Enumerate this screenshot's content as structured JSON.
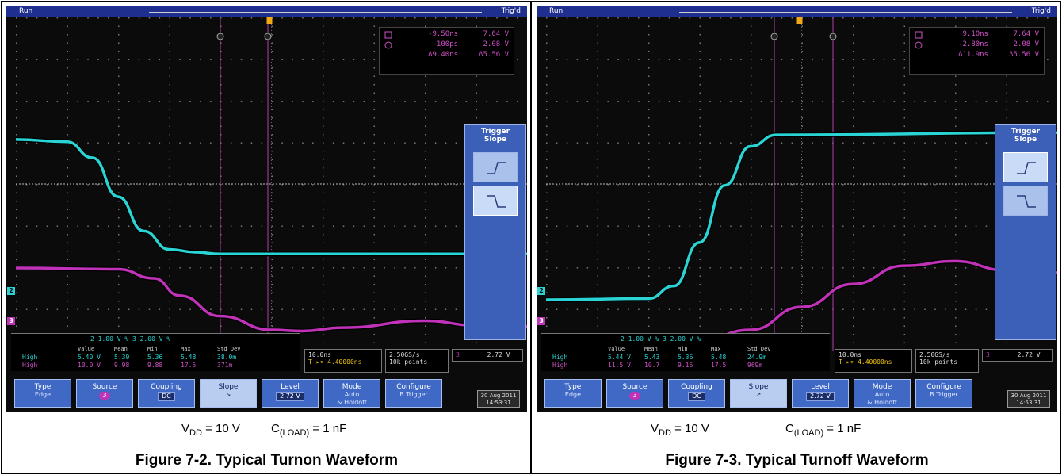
{
  "panels": [
    {
      "status": {
        "run": "Run",
        "trig": "Trig'd"
      },
      "cursor": {
        "t1": "-9.50ns",
        "v1": "7.64 V",
        "t2": "-100ps",
        "v2": "2.08 V",
        "dt": "Δ9.40ns",
        "dv": "Δ5.56 V"
      },
      "trigger_menu": {
        "title_line1": "Trigger",
        "title_line2": "Slope"
      },
      "active_slope": "falling",
      "readout": {
        "scales": "2  1.00 V   %   3  2.00 V   %",
        "headers": [
          "Value",
          "Mean",
          "Min",
          "Max",
          "Std Dev"
        ],
        "ch2_label": "High",
        "ch3_label": "High",
        "ch2_vals": [
          "5.40 V",
          "5.39",
          "5.36",
          "5.48",
          "38.0m"
        ],
        "ch3_vals": [
          "10.0 V",
          "9.98",
          "9.88",
          "17.5",
          "371m"
        ]
      },
      "horizontal": {
        "line1": "10.0ns",
        "line2": "T ▸▾ 4.40000ns",
        "line3": "2.50GS/s",
        "line4": "10k points",
        "trig_ch": "3",
        "trig_level": "2.72 V"
      },
      "softkeys": {
        "type": "Type",
        "type_sub": "Edge",
        "source": "Source",
        "source_sub": "3",
        "coupling": "Coupling",
        "coupling_sub": "DC",
        "slope": "Slope",
        "slope_sub": "↘",
        "level": "Level",
        "level_sub": "2.72 V",
        "mode": "Mode",
        "mode_sub1": "Auto",
        "mode_sub2": "& Holdoff",
        "configure": "Configure",
        "configure_sub": "B Trigger",
        "date": "30 Aug 2011",
        "time": "14:53:31"
      },
      "caption": {
        "vdd_pre": "V",
        "vdd_sub": "DD",
        "vdd_post": " = 10 V",
        "cload_pre": "C",
        "cload_sub": "(LOAD)",
        "cload_post": " = 1 nF"
      },
      "figure_title": "Figure 7-2. Typical Turnon Waveform",
      "colors": {
        "ch2": "#2bd4d4",
        "ch3": "#c032b8"
      }
    },
    {
      "status": {
        "run": "Run",
        "trig": "Trig'd"
      },
      "cursor": {
        "t1": "9.10ns",
        "v1": "7.64 V",
        "t2": "-2.80ns",
        "v2": "2.08 V",
        "dt": "Δ11.9ns",
        "dv": "Δ5.56 V"
      },
      "trigger_menu": {
        "title_line1": "Trigger",
        "title_line2": "Slope"
      },
      "active_slope": "rising",
      "readout": {
        "scales": "2  1.00 V   %   3  2.00 V   %",
        "headers": [
          "Value",
          "Mean",
          "Min",
          "Max",
          "Std Dev"
        ],
        "ch2_label": "High",
        "ch3_label": "High",
        "ch2_vals": [
          "5.44 V",
          "5.43",
          "5.36",
          "5.48",
          "24.9m"
        ],
        "ch3_vals": [
          "11.5 V",
          "10.7",
          "9.16",
          "17.5",
          "969m"
        ]
      },
      "horizontal": {
        "line1": "10.0ns",
        "line2": "T ▸▾ 4.40000ns",
        "line3": "2.50GS/s",
        "line4": "10k points",
        "trig_ch": "3",
        "trig_level": "2.72 V"
      },
      "softkeys": {
        "type": "Type",
        "type_sub": "Edge",
        "source": "Source",
        "source_sub": "3",
        "coupling": "Coupling",
        "coupling_sub": "DC",
        "slope": "Slope",
        "slope_sub": "↗",
        "level": "Level",
        "level_sub": "2.72 V",
        "mode": "Mode",
        "mode_sub1": "Auto",
        "mode_sub2": "& Holdoff",
        "configure": "Configure",
        "configure_sub": "B Trigger",
        "date": "30 Aug 2011",
        "time": "14:53:31"
      },
      "caption": {
        "vdd_pre": "V",
        "vdd_sub": "DD",
        "vdd_post": " = 10 V",
        "cload_pre": "C",
        "cload_sub": "(LOAD)",
        "cload_post": " = 1 nF"
      },
      "figure_title": "Figure 7-3. Typical Turnoff Waveform",
      "colors": {
        "ch2": "#2bd4d4",
        "ch3": "#c032b8"
      }
    }
  ],
  "chart_data": [
    {
      "type": "line",
      "title": "Figure 7-2. Typical Turnon Waveform",
      "xlabel": "",
      "ylabel": "",
      "series": [
        {
          "name": "2",
          "x": [
            0,
            1,
            1.5,
            2,
            2.5,
            3,
            3.5,
            4,
            10
          ],
          "y": [
            7.0,
            6.9,
            6.2,
            4.5,
            3.0,
            2.2,
            2.08,
            2.0,
            2.0
          ]
        },
        {
          "name": "3",
          "x": [
            0,
            2,
            2.7,
            3.2,
            4,
            5,
            5.6,
            6.4,
            8,
            9,
            10
          ],
          "y": [
            5.4,
            5.3,
            4.5,
            3.0,
            1.2,
            0.0,
            -0.1,
            0.2,
            0.8,
            0.4,
            0.3
          ]
        }
      ]
    },
    {
      "type": "line",
      "title": "Figure 7-3. Typical Turnoff Waveform",
      "xlabel": "",
      "ylabel": "",
      "series": [
        {
          "name": "2",
          "x": [
            0,
            2,
            2.5,
            3,
            3.5,
            4,
            4.5,
            10
          ],
          "y": [
            0.0,
            0.05,
            0.6,
            2.5,
            5.0,
            6.7,
            7.2,
            7.3
          ]
        },
        {
          "name": "3",
          "x": [
            0,
            3,
            4,
            5,
            6,
            7,
            8,
            9,
            10
          ],
          "y": [
            -1.0,
            -0.9,
            0.0,
            2.0,
            4.0,
            5.6,
            6.0,
            5.2,
            5.0
          ]
        }
      ]
    }
  ]
}
